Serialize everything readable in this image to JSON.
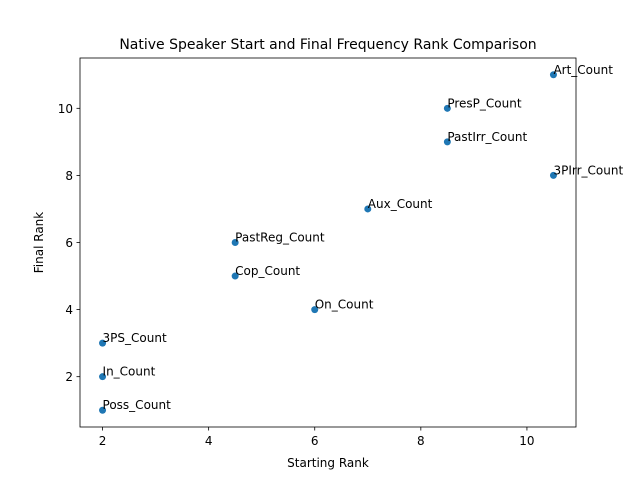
{
  "chart_data": {
    "type": "scatter",
    "title": "Native Speaker Start and Final Frequency Rank Comparison",
    "xlabel": "Starting Rank",
    "ylabel": "Final Rank",
    "xlim": [
      1.575,
      10.925
    ],
    "ylim": [
      0.5,
      11.5
    ],
    "xticks": [
      2,
      4,
      6,
      8,
      10
    ],
    "yticks": [
      2,
      4,
      6,
      8,
      10
    ],
    "grid": false,
    "legend": "none",
    "point_color": "#1f77b4",
    "points": [
      {
        "label": "Art_Count",
        "x": 10.5,
        "y": 11
      },
      {
        "label": "PresP_Count",
        "x": 8.5,
        "y": 10
      },
      {
        "label": "PastIrr_Count",
        "x": 8.5,
        "y": 9
      },
      {
        "label": "3PIrr_Count",
        "x": 10.5,
        "y": 8
      },
      {
        "label": "Aux_Count",
        "x": 7,
        "y": 7
      },
      {
        "label": "PastReg_Count",
        "x": 4.5,
        "y": 6
      },
      {
        "label": "Cop_Count",
        "x": 4.5,
        "y": 5
      },
      {
        "label": "On_Count",
        "x": 6,
        "y": 4
      },
      {
        "label": "3PS_Count",
        "x": 2,
        "y": 3
      },
      {
        "label": "In_Count",
        "x": 2,
        "y": 2
      },
      {
        "label": "Poss_Count",
        "x": 2,
        "y": 1
      }
    ]
  }
}
